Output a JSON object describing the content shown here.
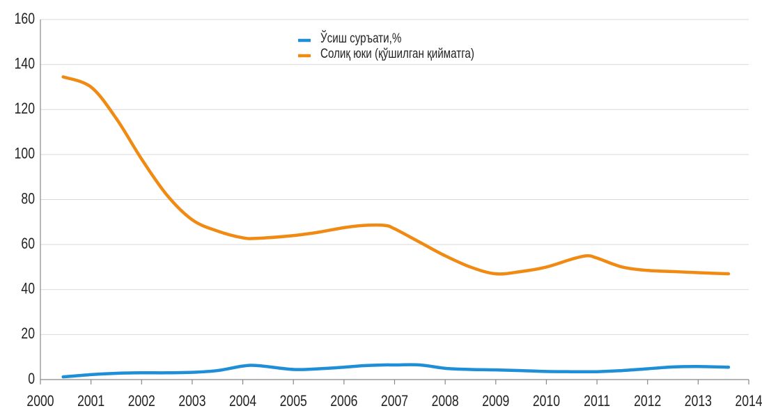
{
  "chart_data": {
    "type": "line",
    "x": [
      2000.45,
      2001,
      2001.5,
      2002,
      2002.5,
      2003,
      2003.5,
      2004,
      2004.3,
      2005,
      2005.5,
      2006,
      2006.4,
      2006.8,
      2007,
      2007.5,
      2008,
      2008.5,
      2009,
      2009.5,
      2010,
      2010.5,
      2010.8,
      2011,
      2011.5,
      2012,
      2012.5,
      2013,
      2013.6
    ],
    "series": [
      {
        "name": "Ўсиш суръати,%",
        "color": "#1e8fd6",
        "values": [
          1.2,
          2.2,
          2.8,
          3,
          3,
          3.2,
          4,
          6,
          6.2,
          4.5,
          4.8,
          5.5,
          6.2,
          6.5,
          6.5,
          6.5,
          5,
          4.5,
          4.3,
          4,
          3.6,
          3.5,
          3.5,
          3.5,
          4,
          4.8,
          5.6,
          5.8,
          5.5
        ]
      },
      {
        "name": "Солиқ юки (қўшилган қийматга)",
        "color": "#f08a12",
        "values": [
          134.5,
          130,
          116,
          98,
          82,
          71,
          66,
          63,
          62.8,
          64,
          65.5,
          67.5,
          68.5,
          68.5,
          67,
          61,
          55,
          50,
          47,
          48,
          50,
          53.5,
          55,
          54,
          50,
          48.5,
          48,
          47.5,
          47
        ]
      }
    ],
    "xlim": [
      2000,
      2014
    ],
    "xticks": [
      2000,
      2001,
      2002,
      2003,
      2004,
      2005,
      2006,
      2007,
      2008,
      2009,
      2010,
      2011,
      2012,
      2013,
      2014
    ],
    "ylim": [
      0,
      160
    ],
    "yticks": [
      0,
      20,
      40,
      60,
      80,
      100,
      120,
      140,
      160
    ],
    "grid": true
  }
}
